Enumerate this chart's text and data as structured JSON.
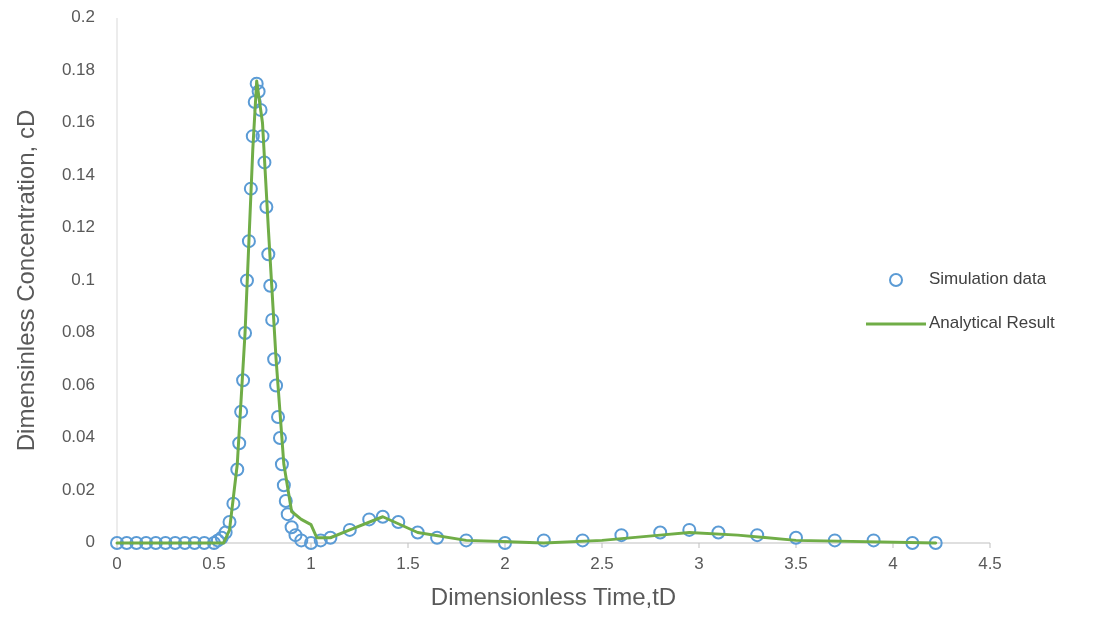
{
  "chart_data": {
    "type": "scatter",
    "xlabel": "Dimensionless Time,tD",
    "ylabel": "Dimensinless Concentration, cD",
    "xlim": [
      0,
      4.5
    ],
    "xticks": [
      0,
      0.5,
      1,
      1.5,
      2,
      2.5,
      3,
      3.5,
      4,
      4.5
    ],
    "ylim": [
      0,
      0.2
    ],
    "yticks": [
      0,
      0.02,
      0.04,
      0.06,
      0.08,
      0.1,
      0.12,
      0.14,
      0.16,
      0.18,
      0.2
    ],
    "grid": false,
    "legend": "right",
    "marker": "circle",
    "series": [
      {
        "name": "Simulation data",
        "color": "#5b9bd5",
        "x": [
          0,
          0.05,
          0.1,
          0.15,
          0.2,
          0.25,
          0.3,
          0.35,
          0.4,
          0.45,
          0.5,
          0.52,
          0.54,
          0.56,
          0.58,
          0.6,
          0.62,
          0.63,
          0.64,
          0.65,
          0.66,
          0.67,
          0.68,
          0.69,
          0.7,
          0.71,
          0.72,
          0.73,
          0.74,
          0.75,
          0.76,
          0.77,
          0.78,
          0.79,
          0.8,
          0.81,
          0.82,
          0.83,
          0.84,
          0.85,
          0.86,
          0.87,
          0.88,
          0.9,
          0.92,
          0.95,
          1.0,
          1.05,
          1.1,
          1.2,
          1.3,
          1.37,
          1.45,
          1.55,
          1.65,
          1.8,
          2.0,
          2.2,
          2.4,
          2.6,
          2.8,
          2.95,
          3.1,
          3.3,
          3.5,
          3.7,
          3.9,
          4.1,
          4.22
        ],
        "values": [
          0,
          0,
          0,
          0,
          0,
          0,
          0,
          0,
          0,
          0,
          0,
          0.001,
          0.002,
          0.004,
          0.008,
          0.015,
          0.028,
          0.038,
          0.05,
          0.062,
          0.08,
          0.1,
          0.115,
          0.135,
          0.155,
          0.168,
          0.175,
          0.172,
          0.165,
          0.155,
          0.145,
          0.128,
          0.11,
          0.098,
          0.085,
          0.07,
          0.06,
          0.048,
          0.04,
          0.03,
          0.022,
          0.016,
          0.011,
          0.006,
          0.003,
          0.001,
          0,
          0.001,
          0.002,
          0.005,
          0.009,
          0.01,
          0.008,
          0.004,
          0.002,
          0.001,
          0,
          0.001,
          0.001,
          0.003,
          0.004,
          0.005,
          0.004,
          0.003,
          0.002,
          0.001,
          0.001,
          0,
          0
        ]
      },
      {
        "name": "Analytical Result",
        "type": "line",
        "color": "#70ad47",
        "marker": "none",
        "x": [
          0,
          0.55,
          0.58,
          0.62,
          0.66,
          0.7,
          0.72,
          0.75,
          0.78,
          0.82,
          0.86,
          0.9,
          0.95,
          1.0,
          1.03,
          1.1,
          1.2,
          1.37,
          1.55,
          1.8,
          2.2,
          2.5,
          2.8,
          2.95,
          3.2,
          3.5,
          4.22
        ],
        "values": [
          0,
          0,
          0.005,
          0.03,
          0.08,
          0.15,
          0.176,
          0.16,
          0.12,
          0.07,
          0.03,
          0.012,
          0.009,
          0.007,
          0.002,
          0.002,
          0.005,
          0.01,
          0.004,
          0.001,
          0,
          0.001,
          0.003,
          0.004,
          0.003,
          0.001,
          0
        ]
      }
    ]
  }
}
